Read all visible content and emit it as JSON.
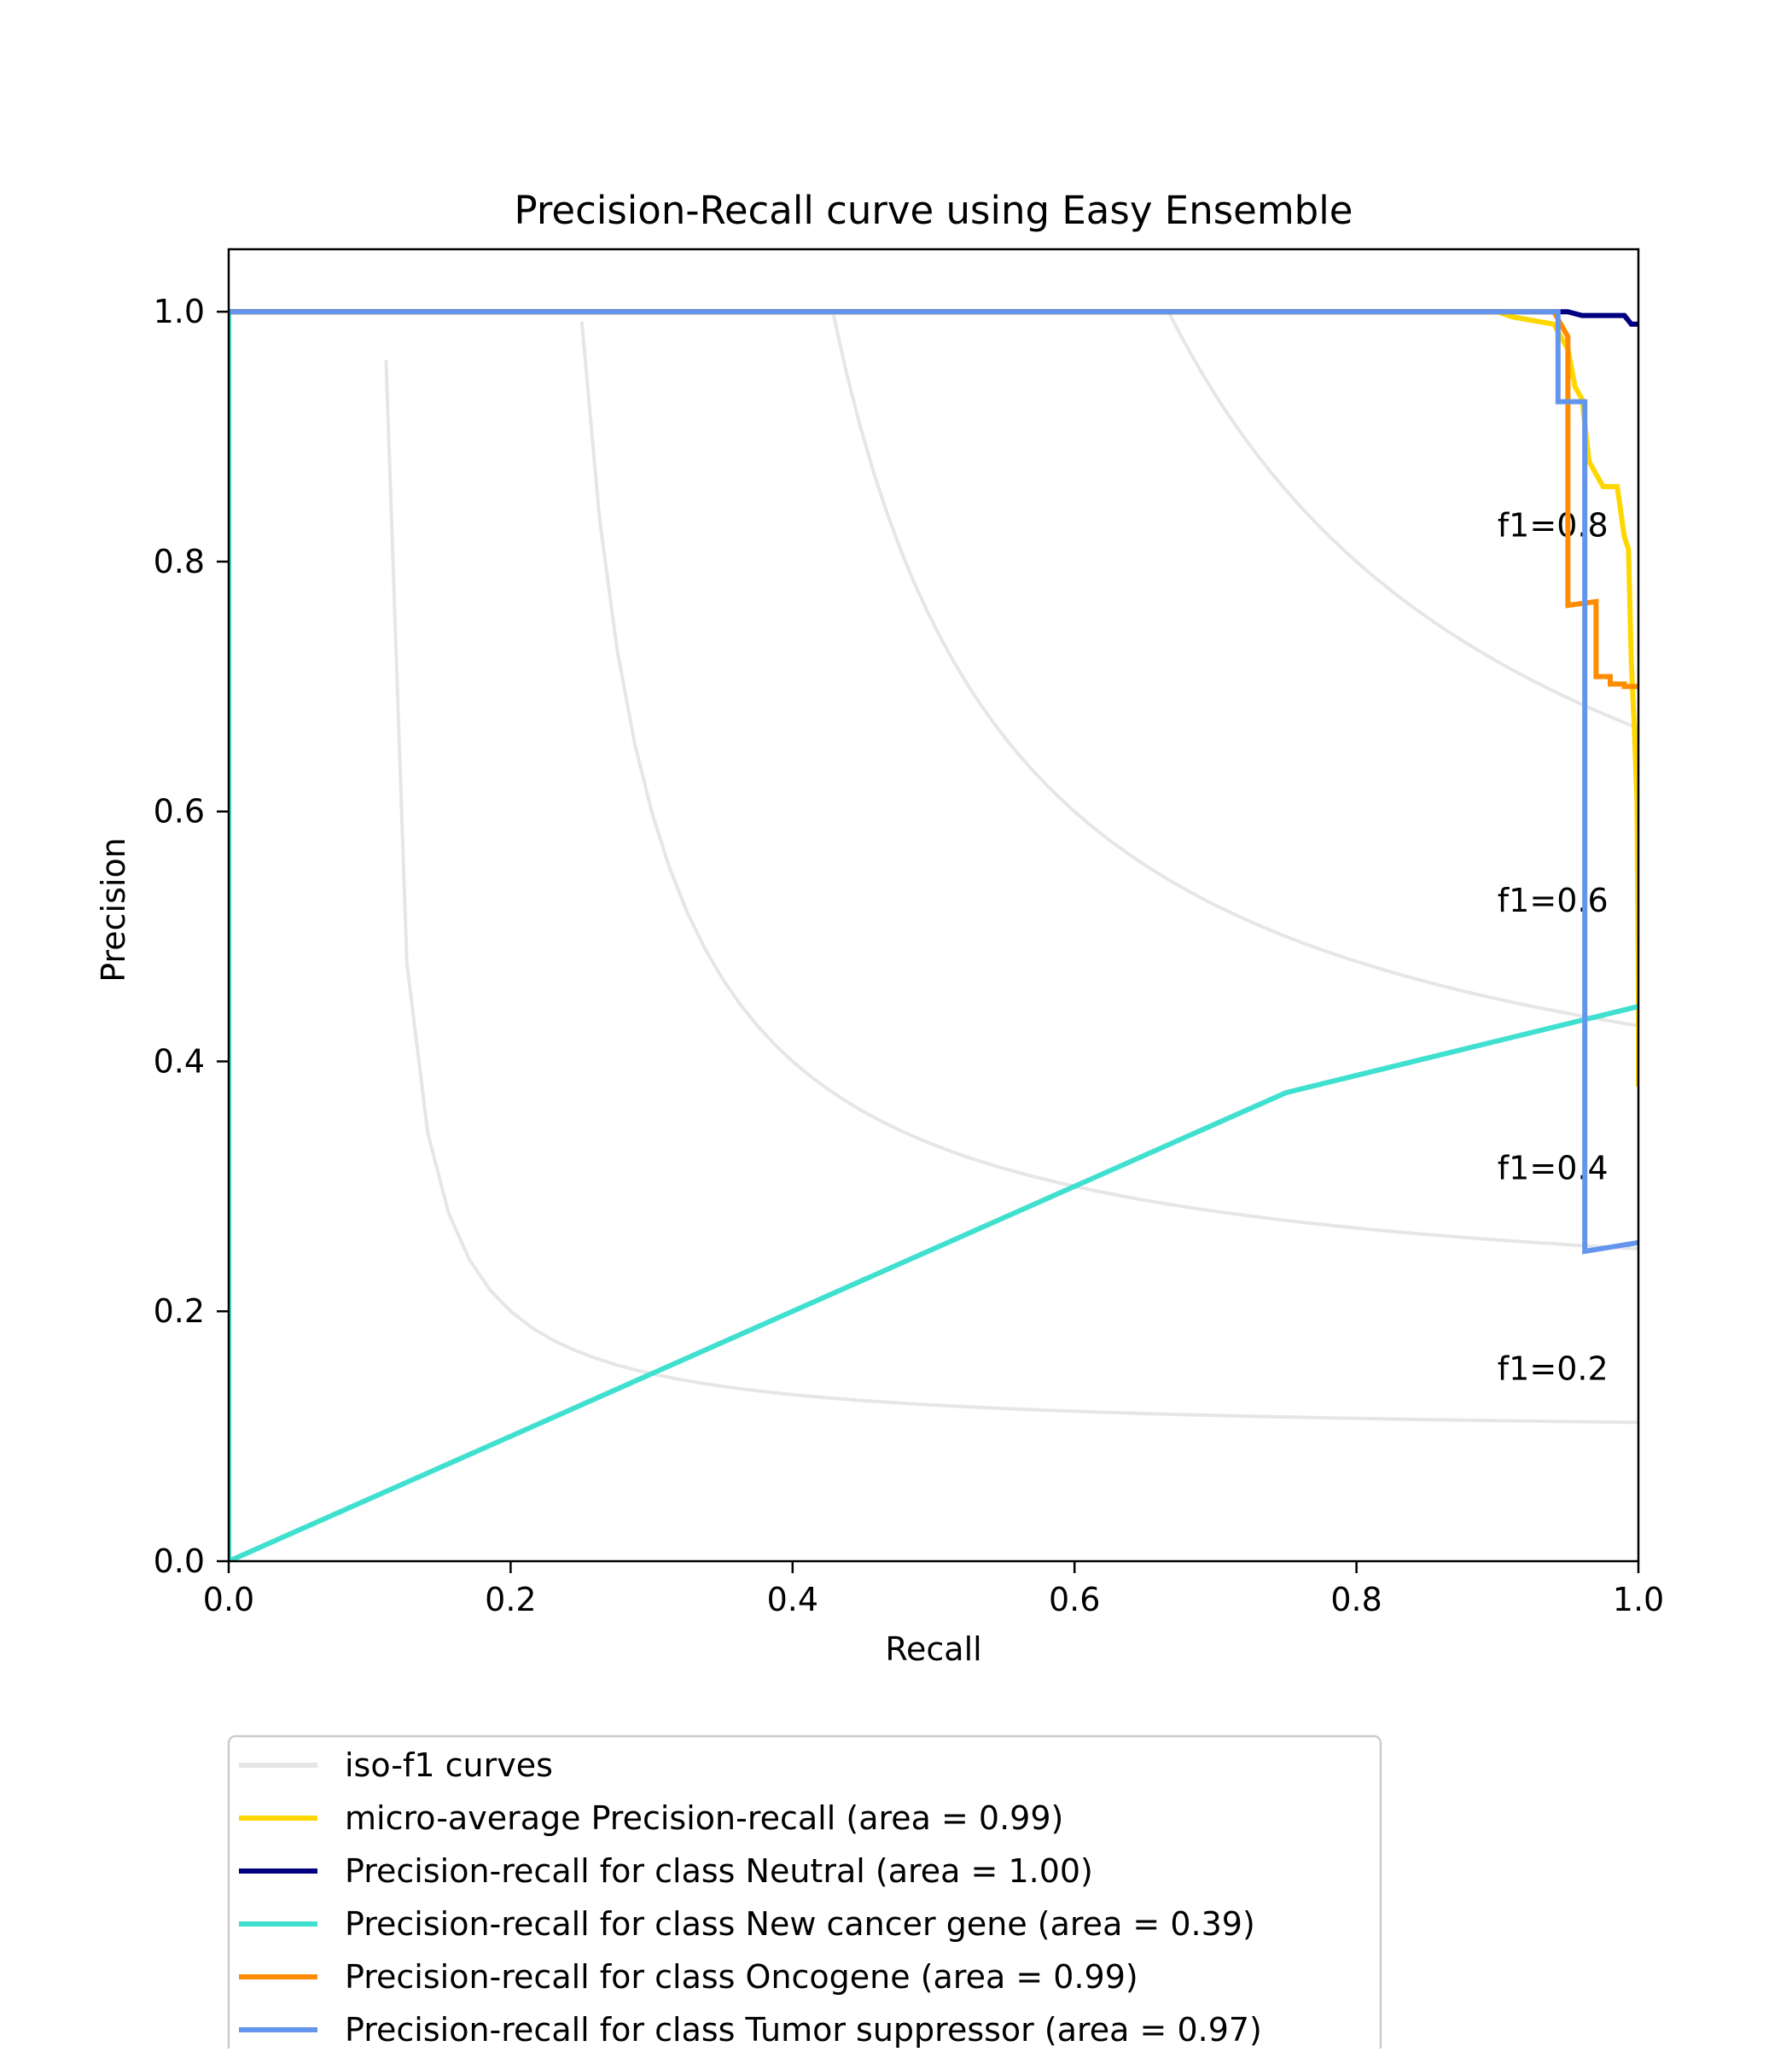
{
  "chart_data": {
    "type": "line",
    "title": "Precision-Recall curve using Easy Ensemble",
    "xlabel": "Recall",
    "ylabel": "Precision",
    "xlim": [
      0.0,
      1.0
    ],
    "ylim": [
      0.0,
      1.05
    ],
    "x_ticks": [
      "0.0",
      "0.2",
      "0.4",
      "0.6",
      "0.8",
      "1.0"
    ],
    "y_ticks": [
      "0.0",
      "0.2",
      "0.4",
      "0.6",
      "0.8",
      "1.0"
    ],
    "grid": false,
    "legend_position": "below-plot",
    "iso_f1": {
      "legend": "iso-f1 curves",
      "color": "#e6e6e6",
      "values": [
        0.2,
        0.4,
        0.6,
        0.8
      ],
      "labels": [
        "f1=0.2",
        "f1=0.4",
        "f1=0.6",
        "f1=0.8"
      ]
    },
    "series": [
      {
        "name": "micro-average Precision-recall (area = 0.99)",
        "color": "#ffd700",
        "points": [
          [
            0.0,
            1.0
          ],
          [
            0.9,
            1.0
          ],
          [
            0.91,
            0.996
          ],
          [
            0.92,
            0.994
          ],
          [
            0.93,
            0.992
          ],
          [
            0.94,
            0.99
          ],
          [
            0.95,
            0.97
          ],
          [
            0.955,
            0.94
          ],
          [
            0.96,
            0.93
          ],
          [
            0.965,
            0.88
          ],
          [
            0.97,
            0.87
          ],
          [
            0.975,
            0.86
          ],
          [
            0.985,
            0.86
          ],
          [
            0.99,
            0.82
          ],
          [
            0.993,
            0.81
          ],
          [
            0.995,
            0.72
          ],
          [
            0.997,
            0.67
          ],
          [
            0.999,
            0.61
          ],
          [
            1.0,
            0.45
          ],
          [
            1.0,
            0.38
          ]
        ]
      },
      {
        "name": "Precision-recall for class Neutral (area = 1.00)",
        "color": "#000080",
        "points": [
          [
            0.0,
            1.0
          ],
          [
            0.95,
            1.0
          ],
          [
            0.96,
            0.997
          ],
          [
            0.99,
            0.997
          ],
          [
            0.995,
            0.99
          ],
          [
            1.0,
            0.99
          ]
        ]
      },
      {
        "name": "Precision-recall for class New cancer gene (area = 0.39)",
        "color": "#40e0d0",
        "points": [
          [
            0.0,
            1.0
          ],
          [
            0.0,
            0.0
          ],
          [
            0.75,
            0.375
          ],
          [
            1.0,
            0.444
          ]
        ]
      },
      {
        "name": "Precision-recall for class Oncogene (area = 0.99)",
        "color": "#ff8c00",
        "points": [
          [
            0.0,
            1.0
          ],
          [
            0.94,
            1.0
          ],
          [
            0.945,
            0.99
          ],
          [
            0.95,
            0.98
          ],
          [
            0.95,
            0.765
          ],
          [
            0.97,
            0.768
          ],
          [
            0.97,
            0.708
          ],
          [
            0.98,
            0.708
          ],
          [
            0.98,
            0.702
          ],
          [
            0.99,
            0.702
          ],
          [
            0.99,
            0.7
          ],
          [
            1.0,
            0.7
          ]
        ]
      },
      {
        "name": "Precision-recall for class Tumor suppressor (area = 0.97)",
        "color": "#6495ed",
        "points": [
          [
            0.0,
            1.0
          ],
          [
            0.943,
            1.0
          ],
          [
            0.943,
            0.928
          ],
          [
            0.962,
            0.928
          ],
          [
            0.962,
            0.248
          ],
          [
            1.0,
            0.255
          ]
        ]
      }
    ]
  }
}
